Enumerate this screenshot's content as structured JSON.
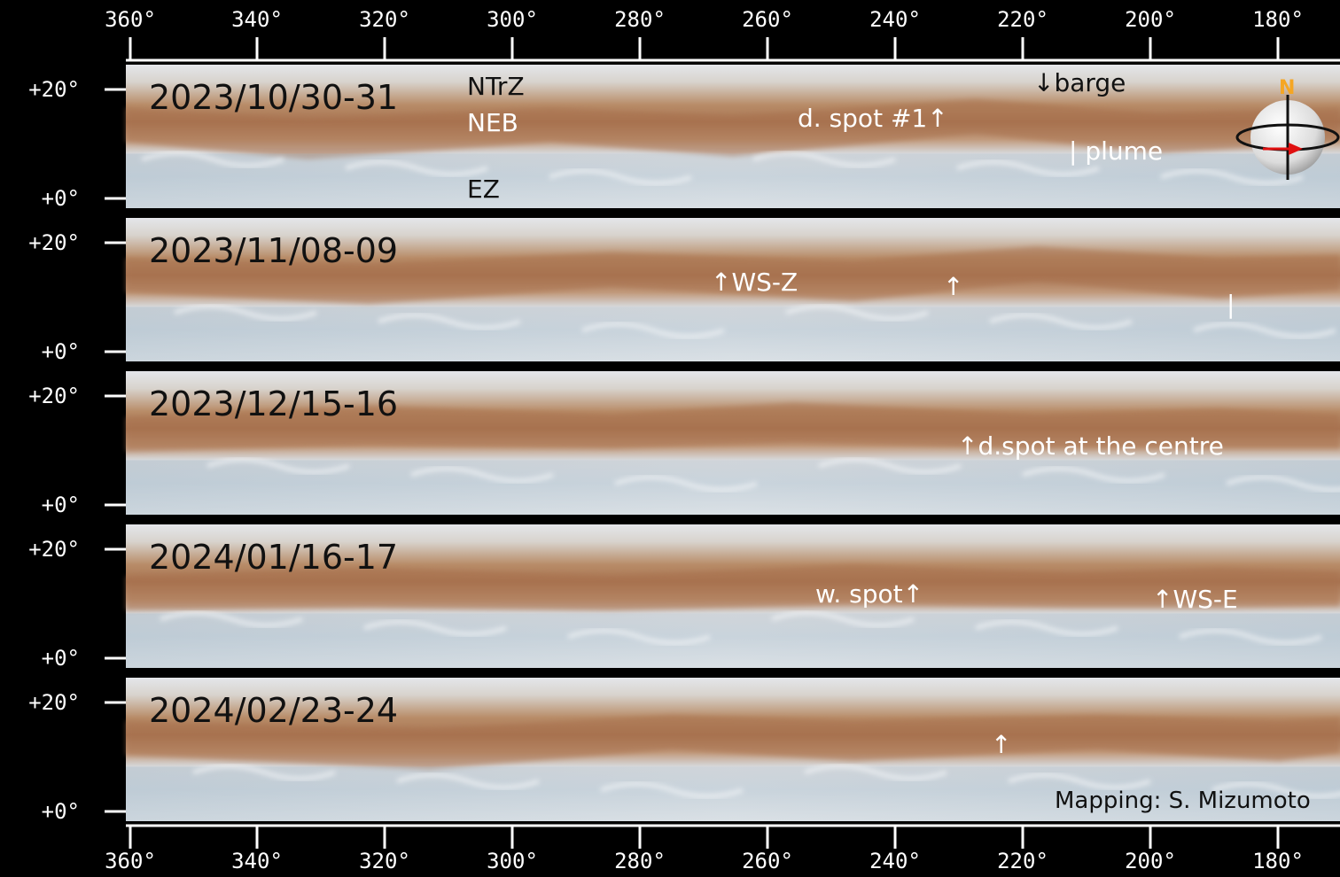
{
  "longitude_axis": {
    "labels": [
      "360°",
      "340°",
      "320°",
      "300°",
      "280°",
      "260°",
      "240°",
      "220°",
      "200°",
      "180°"
    ]
  },
  "latitude_axis": {
    "top_label": "+20°",
    "bottom_label": "+0°"
  },
  "strips": [
    {
      "date": "2023/10/30-31"
    },
    {
      "date": "2023/11/08-09"
    },
    {
      "date": "2023/12/15-16"
    },
    {
      "date": "2024/01/16-17"
    },
    {
      "date": "2024/02/23-24"
    }
  ],
  "zones": {
    "ntrz": "NTrZ",
    "neb": "NEB",
    "ez": "EZ"
  },
  "annotations": {
    "barge": "↓barge",
    "dspot1": "d. spot #1↑",
    "plume": "| plume",
    "wsz": "↑WS-Z",
    "arrow_b": "↑",
    "bar_b": "|",
    "dspot_centre": "↑d.spot at the centre",
    "wspot": "w. spot↑",
    "wse": "↑WS-E",
    "arrow_e": "↑"
  },
  "compass": {
    "north": "N"
  },
  "credit": "Mapping: S. Mizumoto",
  "colors": {
    "background": "#000000",
    "belt": "#b98a63",
    "zone": "#d9dfe6",
    "north_label": "#f5a623",
    "rotation_arrow": "#e01010"
  }
}
